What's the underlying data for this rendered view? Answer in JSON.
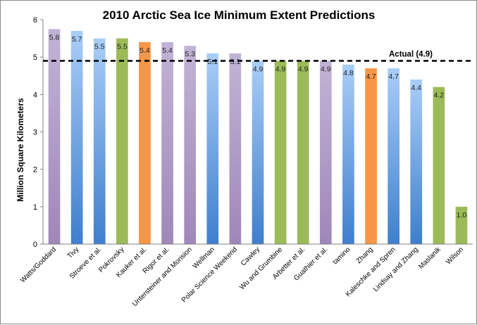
{
  "chart_data": {
    "type": "bar",
    "title": "2010 Arctic Sea Ice Minimum Extent Predictions",
    "xlabel": "",
    "ylabel": "Million Square Kilometers",
    "ylim": [
      0,
      6
    ],
    "yticks": [
      "0",
      "1",
      "2",
      "3",
      "4",
      "5",
      "6"
    ],
    "grid": false,
    "categories": [
      "Watts/Goddard",
      "Tivy",
      "Stroeve et al.",
      "Pokrovsky",
      "Kauker et al.",
      "Rigor et al.",
      "Untersteiner and Morision",
      "Wellman",
      "Polar Science Weekend",
      "Cawley",
      "Wu and Grumbine",
      "Arbetter et al.",
      "Guathier et al.",
      "tamino",
      "Zhang",
      "Kaleschke and Spren",
      "Lindsay and Zhang",
      "Maslanik",
      "Wilson"
    ],
    "values": [
      5.75,
      5.7,
      5.5,
      5.5,
      5.4,
      5.4,
      5.3,
      5.1,
      5.1,
      4.9,
      4.9,
      4.9,
      4.9,
      4.8,
      4.7,
      4.7,
      4.4,
      4.2,
      1.0
    ],
    "labels": [
      "5.8",
      "5.7",
      "5.5",
      "5.5",
      "5.4",
      "5.4",
      "5.3",
      "5.1",
      "5.1",
      "4.9",
      "4.9",
      "4.9",
      "4.9",
      "4.8",
      "4.7",
      "4.7",
      "4.4",
      "4.2",
      "1.0"
    ],
    "bar_groups": [
      "purple",
      "blue",
      "blue",
      "green",
      "orange",
      "purple",
      "purple",
      "blue",
      "purple",
      "blue",
      "green",
      "green",
      "purple",
      "blue",
      "orange",
      "blue",
      "blue",
      "green",
      "green"
    ],
    "colors": {
      "purple": [
        "#c1b3d5",
        "#9f87ba"
      ],
      "blue": [
        "#a9cdf7",
        "#3f7fcd"
      ],
      "green": [
        "#9bbb59",
        "#9bbb59"
      ],
      "orange": [
        "#f79646",
        "#f79646"
      ]
    },
    "reference_line": {
      "value": 4.9,
      "label": "Actual (4.9)",
      "style": "dashed",
      "color": "#000000"
    }
  }
}
